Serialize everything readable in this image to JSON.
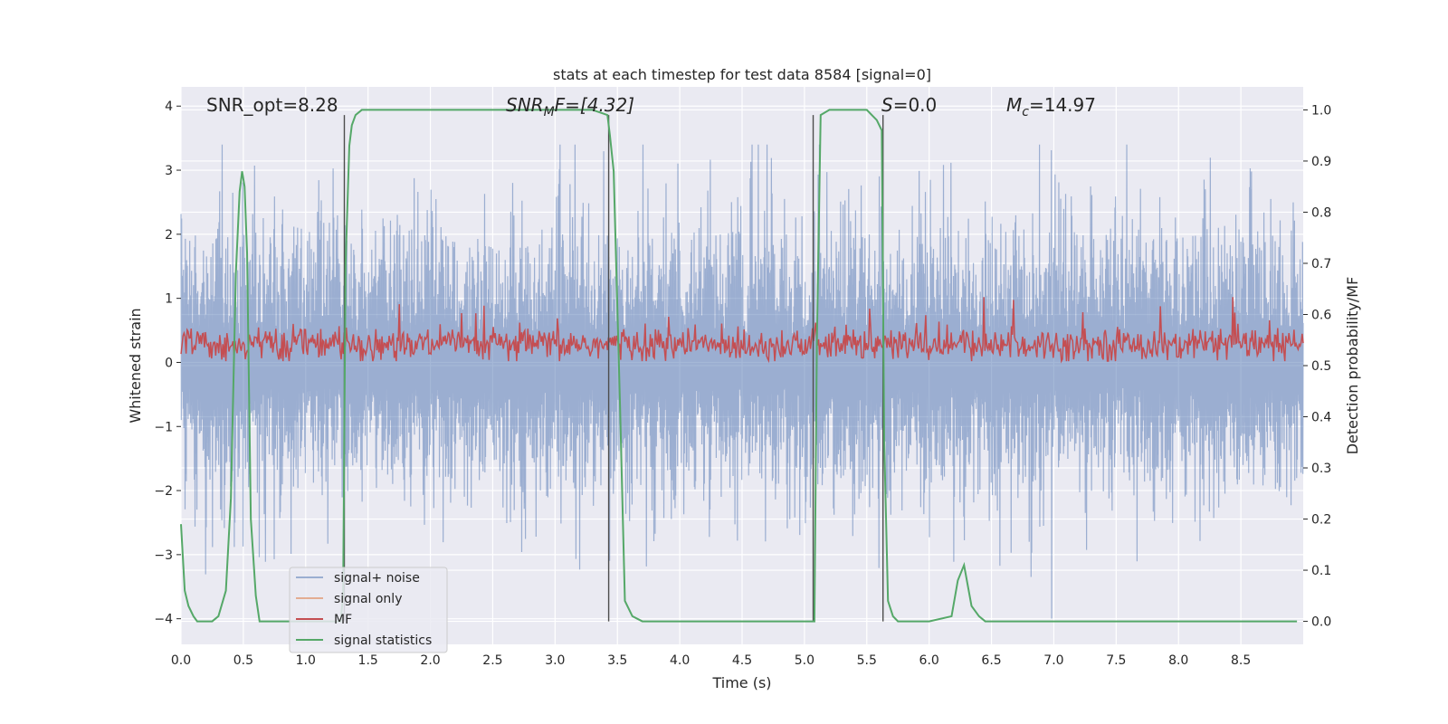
{
  "chart_data": {
    "type": "line",
    "title": "stats at each timestep for test data 8584 [signal=0]",
    "xlabel": "Time (s)",
    "ylabel": "Whitened strain",
    "y2label": "Detection probability/MF",
    "xlim": [
      0,
      9
    ],
    "ylim": [
      -4.4,
      4.3
    ],
    "y2lim": [
      -0.045,
      1.045
    ],
    "x_ticks": [
      "0.0",
      "0.5",
      "1.0",
      "1.5",
      "2.0",
      "2.5",
      "3.0",
      "3.5",
      "4.0",
      "4.5",
      "5.0",
      "5.5",
      "6.0",
      "6.5",
      "7.0",
      "7.5",
      "8.0",
      "8.5"
    ],
    "y_ticks": [
      "4",
      "3",
      "2",
      "1",
      "0",
      "−1",
      "−2",
      "−3",
      "−4"
    ],
    "y2_ticks": [
      "1.0",
      "0.9",
      "0.8",
      "0.7",
      "0.6",
      "0.5",
      "0.4",
      "0.3",
      "0.2",
      "0.1",
      "0.0"
    ],
    "grid": true,
    "legend_position": "lower-left",
    "annotations": {
      "snr_opt": "SNR_opt=8.28",
      "snr_mf_main": "SNR",
      "snr_mf_sub": "M",
      "snr_mf_rest": "F=[4.32]",
      "s_main": "S",
      "s_rest": "=0.0",
      "mc_main": "M",
      "mc_sub": "c",
      "mc_rest": "=14.97"
    },
    "vertical_lines_x": [
      1.31,
      3.43,
      5.07,
      5.63
    ],
    "series": [
      {
        "name": "signal+ noise",
        "color": "#4c72b0",
        "envelope_upper": 2.2,
        "envelope_lower": -2.1,
        "peak_upper": 3.4,
        "peak_lower": -4.0
      },
      {
        "name": "signal only",
        "color": "#dd8452",
        "values": []
      },
      {
        "name": "MF",
        "color": "#c44e52",
        "baseline": 0.28,
        "peak": 1.02
      },
      {
        "name": "signal statistics",
        "color": "#55a868",
        "axis": "right",
        "x": [
          0.0,
          0.03,
          0.06,
          0.1,
          0.13,
          0.18,
          0.25,
          0.3,
          0.36,
          0.4,
          0.44,
          0.47,
          0.49,
          0.51,
          0.53,
          0.56,
          0.6,
          0.63,
          0.7,
          0.8,
          0.9,
          1.0,
          1.1,
          1.2,
          1.28,
          1.3,
          1.32,
          1.35,
          1.37,
          1.4,
          1.45,
          1.5,
          2.0,
          2.5,
          3.0,
          3.3,
          3.42,
          3.44,
          3.47,
          3.52,
          3.56,
          3.62,
          3.7,
          3.8,
          4.0,
          4.5,
          5.0,
          5.05,
          5.08,
          5.1,
          5.13,
          5.2,
          5.3,
          5.5,
          5.58,
          5.62,
          5.64,
          5.67,
          5.71,
          5.75,
          5.8,
          6.0,
          6.18,
          6.23,
          6.28,
          6.34,
          6.4,
          6.45,
          6.5,
          7.0,
          7.5,
          8.0,
          8.5,
          8.95
        ],
        "y": [
          0.19,
          0.06,
          0.03,
          0.01,
          0.0,
          0.0,
          0.0,
          0.01,
          0.06,
          0.24,
          0.68,
          0.84,
          0.88,
          0.85,
          0.72,
          0.2,
          0.05,
          0.0,
          0.0,
          0.0,
          0.0,
          0.0,
          0.0,
          0.0,
          0.0,
          0.05,
          0.7,
          0.93,
          0.97,
          0.99,
          1.0,
          1.0,
          1.0,
          1.0,
          1.0,
          1.0,
          0.99,
          0.95,
          0.88,
          0.43,
          0.04,
          0.01,
          0.0,
          0.0,
          0.0,
          0.0,
          0.0,
          0.0,
          0.0,
          0.55,
          0.99,
          1.0,
          1.0,
          1.0,
          0.98,
          0.96,
          0.35,
          0.04,
          0.01,
          0.0,
          0.0,
          0.0,
          0.01,
          0.08,
          0.11,
          0.03,
          0.01,
          0.0,
          0.0,
          0.0,
          0.0,
          0.0,
          0.0,
          0.0
        ]
      }
    ]
  }
}
